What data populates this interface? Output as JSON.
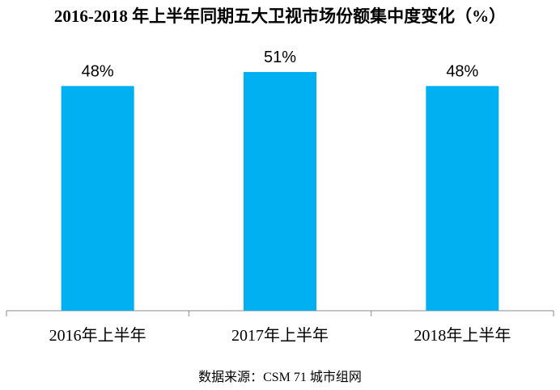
{
  "title": "2016-2018 年上半年同期五大卫视市场份额集中度变化（%）",
  "source": "数据来源：CSM 71 城市组网",
  "colors": {
    "bar": "#00b0f0",
    "axis": "#888888",
    "text": "#000000"
  },
  "chart_data": {
    "type": "bar",
    "title": "2016-2018 年上半年同期五大卫视市场份额集中度变化（%）",
    "xlabel": "",
    "ylabel": "",
    "categories": [
      "2016年上半年",
      "2017年上半年",
      "2018年上半年"
    ],
    "values": [
      48,
      51,
      48
    ],
    "data_labels": [
      "48%",
      "51%",
      "48%"
    ],
    "unit": "%",
    "ylim": [
      0,
      55
    ],
    "grid": false,
    "legend": "none"
  }
}
